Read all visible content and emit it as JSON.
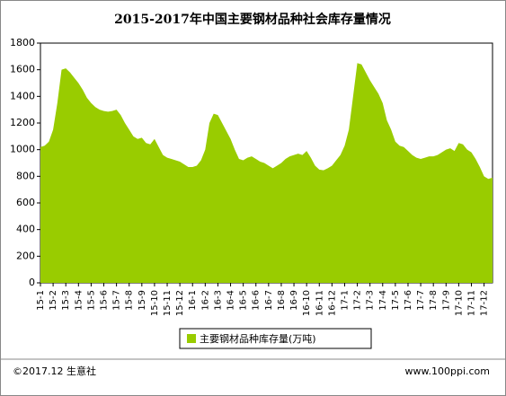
{
  "chart_data": {
    "type": "area",
    "title": "2015-2017年中国主要钢材品种社会库存量情况",
    "categories": [
      "15-1",
      null,
      null,
      "15-2",
      null,
      null,
      "15-3",
      null,
      null,
      "15-4",
      null,
      null,
      "15-5",
      null,
      null,
      "15-6",
      null,
      null,
      "15-7",
      null,
      null,
      "15-8",
      null,
      null,
      "15-9",
      null,
      null,
      "15-10",
      null,
      null,
      "15-11",
      null,
      null,
      "15-12",
      null,
      null,
      "16-1",
      null,
      null,
      "16-2",
      null,
      null,
      "16-3",
      null,
      null,
      "16-4",
      null,
      null,
      "16-5",
      null,
      null,
      "16-6",
      null,
      null,
      "16-7",
      null,
      null,
      "16-8",
      null,
      null,
      "16-9",
      null,
      null,
      "16-10",
      null,
      null,
      "16-11",
      null,
      null,
      "16-12",
      null,
      null,
      "17-1",
      null,
      null,
      "17-2",
      null,
      null,
      "17-3",
      null,
      null,
      "17-4",
      null,
      null,
      "17-5",
      null,
      null,
      "17-6",
      null,
      null,
      "17-7",
      null,
      null,
      "17-8",
      null,
      null,
      "17-9",
      null,
      null,
      "17-10",
      null,
      null,
      "17-11",
      null,
      null,
      "17-12",
      null,
      null
    ],
    "series": [
      {
        "name": "主要钢材品种库存量(万吨)",
        "color": "#99cc00",
        "values": [
          1020,
          1030,
          1060,
          1150,
          1350,
          1600,
          1610,
          1580,
          1540,
          1500,
          1450,
          1390,
          1350,
          1320,
          1300,
          1290,
          1285,
          1290,
          1300,
          1260,
          1200,
          1150,
          1100,
          1080,
          1090,
          1050,
          1040,
          1080,
          1020,
          960,
          940,
          930,
          920,
          910,
          890,
          870,
          870,
          880,
          920,
          1000,
          1200,
          1270,
          1260,
          1200,
          1140,
          1080,
          1000,
          930,
          920,
          940,
          950,
          930,
          910,
          900,
          880,
          860,
          880,
          900,
          930,
          950,
          960,
          970,
          960,
          990,
          940,
          880,
          850,
          845,
          860,
          880,
          920,
          960,
          1030,
          1150,
          1400,
          1650,
          1640,
          1580,
          1520,
          1470,
          1420,
          1350,
          1220,
          1150,
          1060,
          1030,
          1020,
          990,
          960,
          940,
          930,
          940,
          950,
          950,
          960,
          980,
          1000,
          1010,
          990,
          1050,
          1040,
          1000,
          980,
          930,
          870,
          800,
          780,
          790
        ]
      }
    ],
    "ylim": [
      0,
      1800
    ],
    "yticks": [
      0,
      200,
      400,
      600,
      800,
      1000,
      1200,
      1400,
      1600,
      1800
    ],
    "legend": "bottom"
  },
  "footer": {
    "left": "©2017.12 生意社",
    "right": "www.100ppi.com"
  }
}
